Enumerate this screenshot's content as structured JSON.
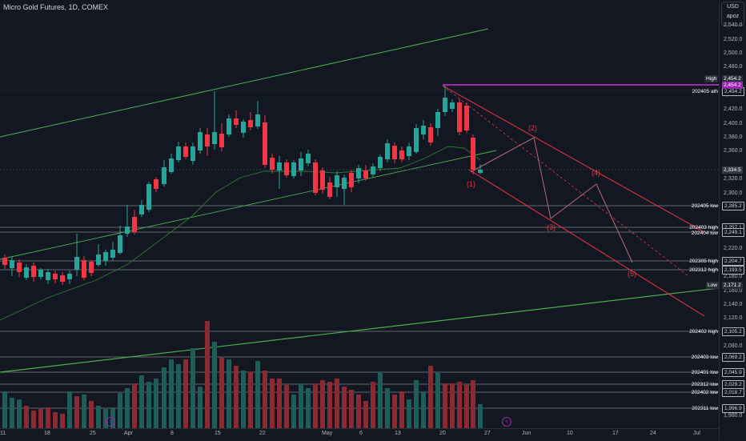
{
  "header": {
    "symbol_title": "Micro Gold Futures, 1D, COMEX"
  },
  "axis_box": {
    "currency": "USD",
    "user": "apoz"
  },
  "price_ticks": [
    "2,540.0",
    "2,520.0",
    "2,500.0",
    "2,480.0",
    "2,440.0",
    "2,420.0",
    "2,400.0",
    "2,380.0",
    "2,360.0",
    "2,320.0",
    "2,300.0",
    "2,280.0",
    "2,240.0",
    "2,220.0",
    "2,180.0",
    "2,160.0",
    "2,140.0",
    "2,120.0",
    "2,080.0",
    "2,060.0",
    "1,980.0"
  ],
  "time_ticks": [
    "11",
    "18",
    "25",
    "Apr",
    "8",
    "15",
    "22",
    "May",
    "6",
    "13",
    "20",
    "27",
    "Jun",
    "10",
    "17",
    "24",
    "Jul"
  ],
  "price_tags": {
    "high": {
      "label": "High",
      "value": "2,454.2",
      "color": "#2a2e39"
    },
    "ath": {
      "value": "2,454.2",
      "color": "#9c27b0"
    },
    "last": {
      "value": "2,334.5",
      "color": "#363a45"
    },
    "low": {
      "label": "Low",
      "value": "2,171.2",
      "color": "#2a2e39"
    }
  },
  "levels": [
    {
      "label": "202405 ath",
      "value": "2,454.2"
    },
    {
      "label": "202405 low",
      "value": "2,285.2"
    },
    {
      "label": "202403 high",
      "value": "2,257.1"
    },
    {
      "label": "202404 low",
      "value": "2,249.1"
    },
    {
      "label": "202305 high",
      "value": "2,204.7"
    },
    {
      "label": "202312 high",
      "value": "2,193.5"
    },
    {
      "label": "202402 high",
      "value": "2,105.2"
    },
    {
      "label": "202403 low",
      "value": "2,069.2"
    },
    {
      "label": "202401 low",
      "value": "2,045.9"
    },
    {
      "label": "202312 low",
      "value": "2,029.2"
    },
    {
      "label": "202402 low",
      "value": "2,018.7"
    },
    {
      "label": "202311 low",
      "value": "1,996.9"
    }
  ],
  "wave_labels": [
    "(1)",
    "(2)",
    "(3)",
    "(4)",
    "(5)"
  ],
  "colors": {
    "up": "#26a69a",
    "down": "#f23645",
    "channel_green": "#4caf50",
    "ma": "#1b5e20",
    "ath_line": "#9c27b0"
  }
}
